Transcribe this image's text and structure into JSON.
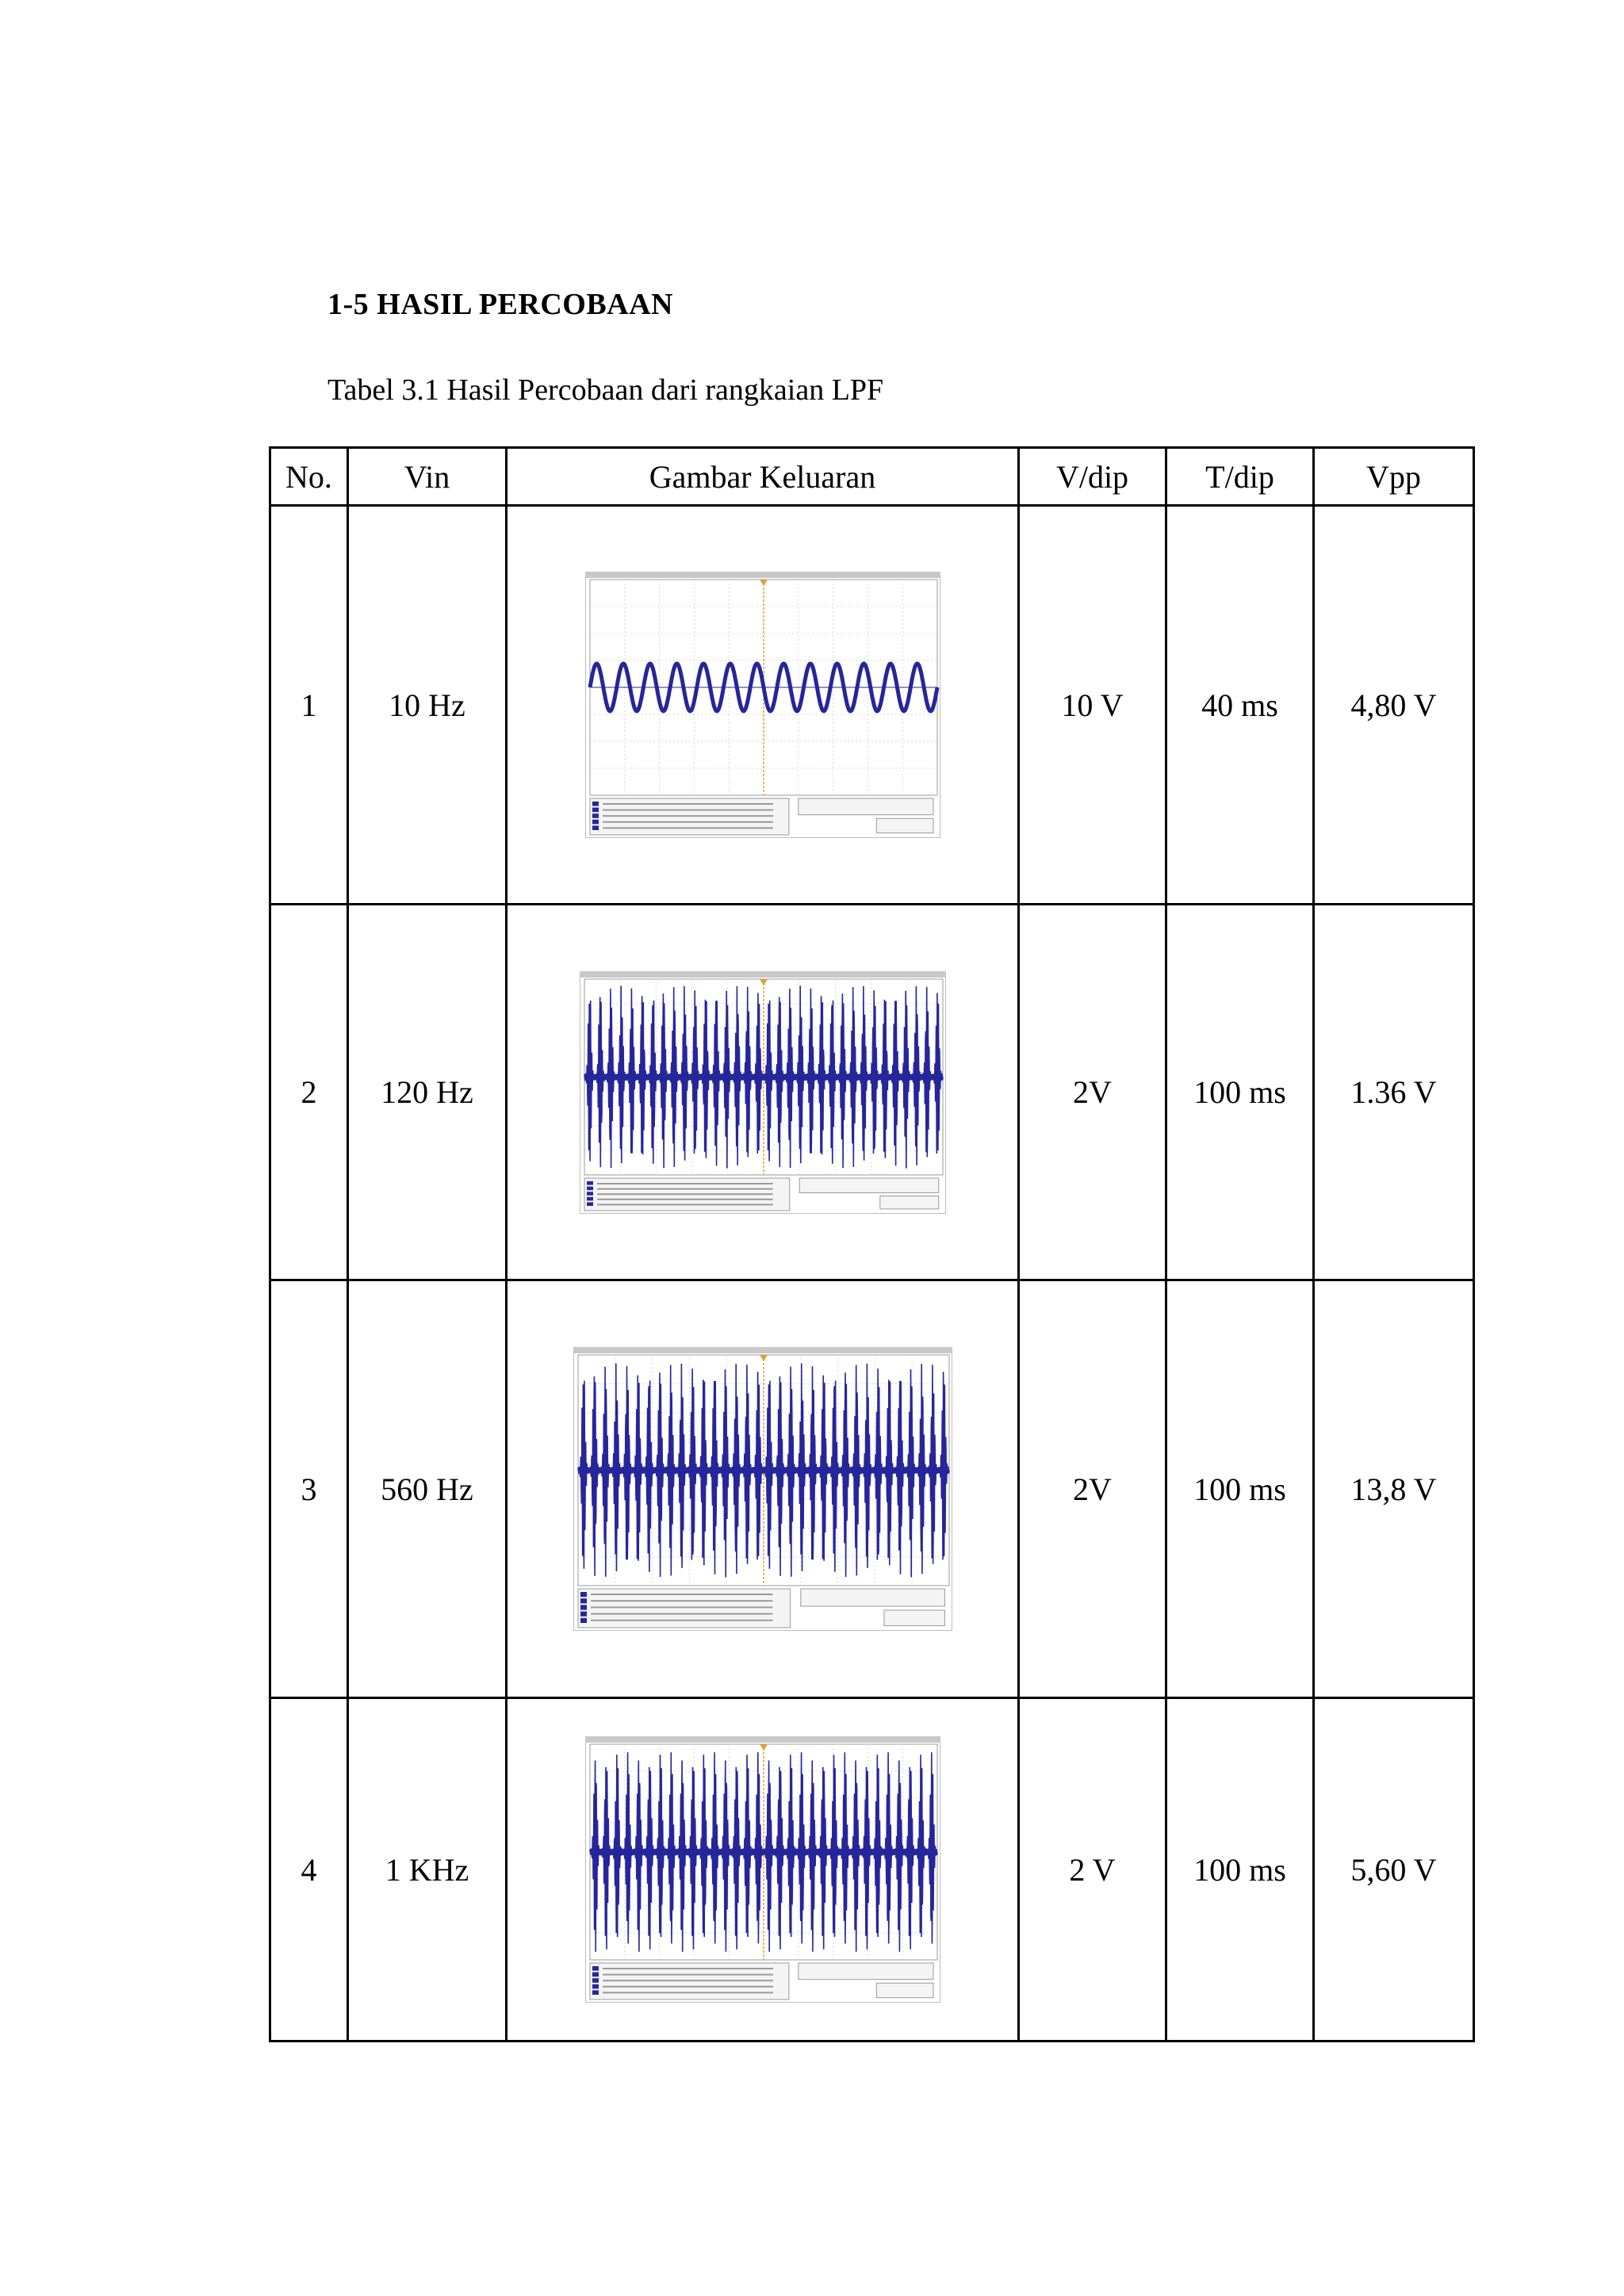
{
  "heading": "1-5 HASIL  PERCOBAAN",
  "caption": "Tabel 3.1 Hasil  Percobaan dari rangkaian  LPF",
  "table": {
    "headers": [
      "No.",
      "Vin",
      "Gambar  Keluaran",
      "V/dip",
      "T/dip",
      "Vpp"
    ],
    "rows": [
      {
        "no": "1",
        "vin": "10 Hz",
        "vdip": "10 V",
        "tdip": "40 ms",
        "vpp": "4,80 V",
        "cycles": 13,
        "amplitude": 0.22,
        "envelope": false
      },
      {
        "no": "2",
        "vin": "120 Hz",
        "vdip": "2V",
        "tdip": "100 ms",
        "vpp": "1.36 V",
        "cycles": 34,
        "amplitude": 0.92,
        "envelope": true
      },
      {
        "no": "3",
        "vin": "560 Hz",
        "vdip": "2V",
        "tdip": "100 ms",
        "vpp": "13,8 V",
        "cycles": 34,
        "amplitude": 0.92,
        "envelope": true
      },
      {
        "no": "4",
        "vin": "1 KHz",
        "vdip": "2 V",
        "tdip": "100 ms",
        "vpp": "5,60 V",
        "cycles": 32,
        "amplitude": 0.92,
        "envelope": true
      }
    ]
  },
  "colors": {
    "trace": "#26269a",
    "grid": "#d8d8d8",
    "marker": "#e0a030"
  }
}
